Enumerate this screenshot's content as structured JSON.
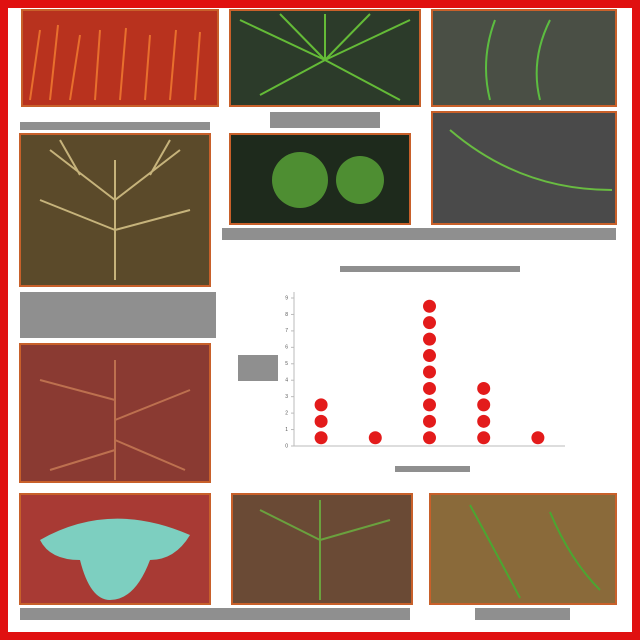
{
  "chart_data": {
    "type": "dot",
    "categories": [
      null,
      null,
      null,
      null,
      null
    ],
    "values": [
      3,
      1,
      9,
      4,
      1
    ],
    "color": "#e31b1b",
    "ylim": [
      0,
      9
    ],
    "yticks": [
      0,
      1,
      2,
      3,
      4,
      5,
      6,
      7,
      8,
      9
    ]
  }
}
